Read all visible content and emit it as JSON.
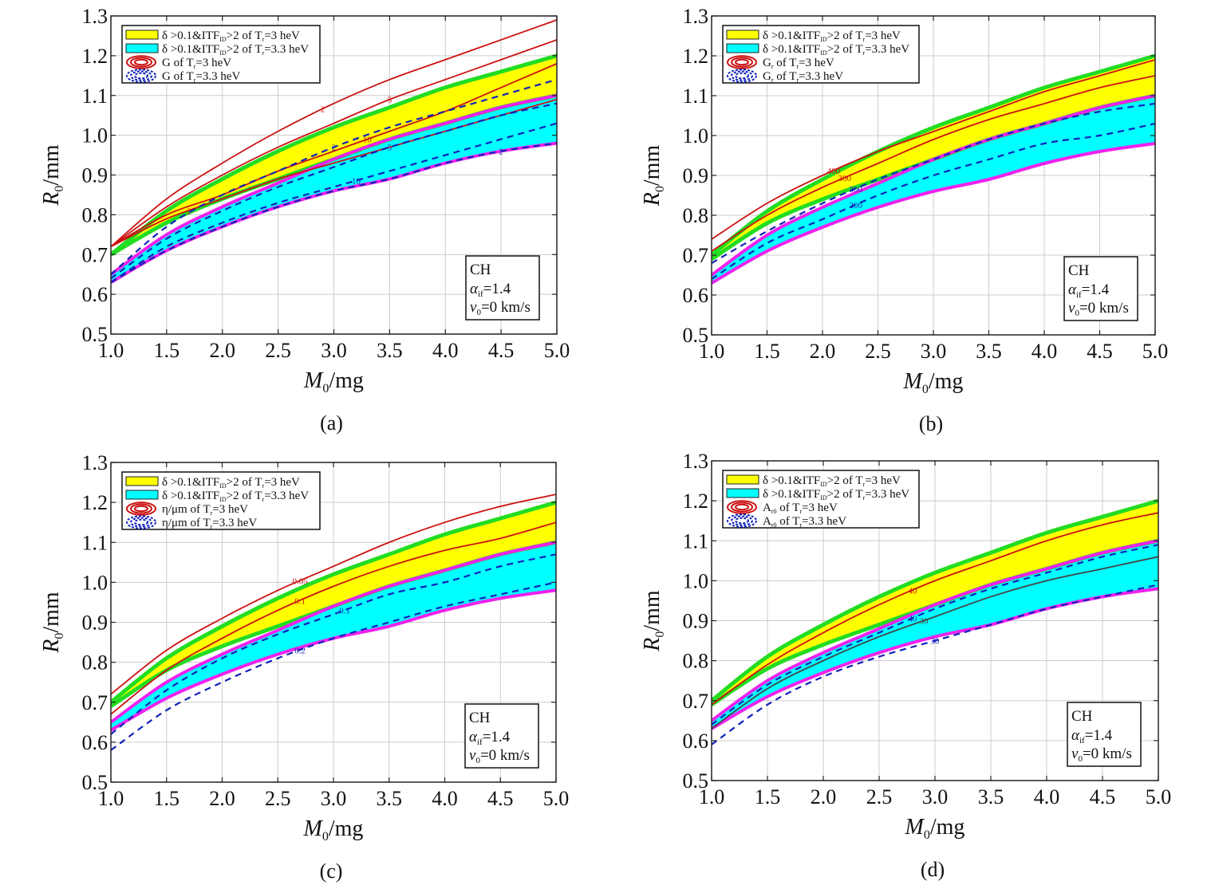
{
  "colors": {
    "yellow_band": "#ffff00",
    "cyan_band": "#00ffff",
    "green_edge": "#22dd22",
    "magenta_edge": "#ee22ee",
    "red_contour": "#cc1111",
    "blue_contour": "#1122bb",
    "dark_contour": "#444444",
    "grid": "#cccccc"
  },
  "chart_data": [
    {
      "panel": "a",
      "type": "area",
      "caption": "(a)",
      "xlabel_main": "M",
      "xlabel_sub": "0",
      "xlabel_unit": "/mg",
      "ylabel_main": "R",
      "ylabel_sub": "0",
      "ylabel_unit": "/mm",
      "xlim": [
        1.0,
        5.0
      ],
      "ylim": [
        0.5,
        1.3
      ],
      "xticks": [
        "1.0",
        "1.5",
        "2.0",
        "2.5",
        "3.0",
        "3.5",
        "4.0",
        "4.5",
        "5.0"
      ],
      "yticks": [
        "0.5",
        "0.6",
        "0.7",
        "0.8",
        "0.9",
        "1.0",
        "1.1",
        "1.2",
        "1.3"
      ],
      "grid": true,
      "legend_position": "top-left",
      "legend": [
        {
          "kind": "yellow",
          "pre": "δ >0.1&ITF",
          "sub1": "ID",
          "mid": ">2 of T",
          "sub2": "r",
          "post": "=3 heV"
        },
        {
          "kind": "cyan",
          "pre": "δ >0.1&ITF",
          "sub1": "ID",
          "mid": ">2 of T",
          "sub2": "r",
          "post": "=3.3 heV"
        },
        {
          "kind": "red",
          "pre": "G of T",
          "sub1": "",
          "mid": "",
          "sub2": "r",
          "post": "=3 heV"
        },
        {
          "kind": "blue",
          "pre": "G of T",
          "sub1": "",
          "mid": "",
          "sub2": "r",
          "post": "=3.3 heV"
        }
      ],
      "info": {
        "material": "CH",
        "alpha_pre": "α",
        "alpha_sub": "if",
        "alpha_post": "=1.4",
        "v_pre": "v",
        "v_sub": "0",
        "v_post": "=0 km/s"
      },
      "x": [
        1.0,
        1.5,
        2.0,
        2.5,
        3.0,
        3.5,
        4.0,
        4.5,
        5.0
      ],
      "bands": {
        "yellow_upper": [
          0.7,
          0.81,
          0.89,
          0.96,
          1.02,
          1.07,
          1.12,
          1.16,
          1.2
        ],
        "yellow_lower": [
          0.7,
          0.78,
          0.84,
          0.89,
          0.94,
          0.99,
          1.03,
          1.07,
          1.1
        ],
        "cyan_upper": [
          0.65,
          0.75,
          0.82,
          0.88,
          0.94,
          0.99,
          1.03,
          1.07,
          1.1
        ],
        "cyan_lower": [
          0.63,
          0.71,
          0.77,
          0.82,
          0.86,
          0.89,
          0.93,
          0.96,
          0.98
        ]
      },
      "contours": [
        {
          "set": "red",
          "label": "2",
          "label_at": 2.9,
          "y": [
            0.72,
            0.84,
            0.93,
            1.01,
            1.08,
            1.14,
            1.19,
            1.24,
            1.29
          ]
        },
        {
          "set": "red",
          "label": "5",
          "label_at": 3.5,
          "y": [
            0.72,
            0.82,
            0.9,
            0.97,
            1.03,
            1.09,
            1.14,
            1.19,
            1.24
          ]
        },
        {
          "set": "red",
          "label": "10",
          "label_at": 3.3,
          "y": [
            0.72,
            0.8,
            0.85,
            0.91,
            0.96,
            1.01,
            1.06,
            1.12,
            1.18
          ]
        },
        {
          "set": "red",
          "label": "2",
          "label_at": 1.7,
          "y": [
            0.72,
            0.79,
            0.84,
            0.89,
            0.93,
            0.97,
            1.01,
            1.05,
            1.09
          ]
        },
        {
          "set": "blue",
          "label": "2",
          "label_at": 3.0,
          "y": [
            0.65,
            0.77,
            0.85,
            0.91,
            0.97,
            1.02,
            1.06,
            1.1,
            1.14
          ]
        },
        {
          "set": "blue",
          "label": "5",
          "label_at": 3.5,
          "y": [
            0.64,
            0.74,
            0.81,
            0.87,
            0.92,
            0.97,
            1.01,
            1.05,
            1.08
          ]
        },
        {
          "set": "blue",
          "label": "10",
          "label_at": 3.2,
          "y": [
            0.63,
            0.72,
            0.78,
            0.83,
            0.87,
            0.91,
            0.95,
            0.99,
            1.03
          ]
        },
        {
          "set": "blue",
          "label": "2",
          "label_at": 4.5,
          "y": [
            0.63,
            0.71,
            0.77,
            0.82,
            0.86,
            0.89,
            0.93,
            0.96,
            0.98
          ]
        }
      ]
    },
    {
      "panel": "b",
      "type": "area",
      "caption": "(b)",
      "xlabel_main": "M",
      "xlabel_sub": "0",
      "xlabel_unit": "/mg",
      "ylabel_main": "R",
      "ylabel_sub": "0",
      "ylabel_unit": "/mm",
      "xlim": [
        1.0,
        5.0
      ],
      "ylim": [
        0.5,
        1.3
      ],
      "xticks": [
        "1.0",
        "1.5",
        "2.0",
        "2.5",
        "3.0",
        "3.5",
        "4.0",
        "4.5",
        "5.0"
      ],
      "yticks": [
        "0.5",
        "0.6",
        "0.7",
        "0.8",
        "0.9",
        "1.0",
        "1.1",
        "1.2",
        "1.3"
      ],
      "grid": true,
      "legend_position": "top-left",
      "legend": [
        {
          "kind": "yellow",
          "pre": "δ >0.1&ITF",
          "sub1": "ID",
          "mid": ">2 of T",
          "sub2": "r",
          "post": "=3 heV"
        },
        {
          "kind": "cyan",
          "pre": "δ >0.1&ITF",
          "sub1": "ID",
          "mid": ">2 of T",
          "sub2": "r",
          "post": "=3.3 heV"
        },
        {
          "kind": "red",
          "pre": "G",
          "sub1": "r",
          "mid": " of T",
          "sub2": "r",
          "post": "=3 heV"
        },
        {
          "kind": "blue",
          "pre": "G",
          "sub1": "r",
          "mid": " of T",
          "sub2": "r",
          "post": "=3.3 heV"
        }
      ],
      "info": {
        "material": "CH",
        "alpha_pre": "α",
        "alpha_sub": "if",
        "alpha_post": "=1.4",
        "v_pre": "v",
        "v_sub": "0",
        "v_post": "=0 km/s"
      },
      "x": [
        1.0,
        1.5,
        2.0,
        2.5,
        3.0,
        3.5,
        4.0,
        4.5,
        5.0
      ],
      "bands": {
        "yellow_upper": [
          0.7,
          0.81,
          0.89,
          0.96,
          1.02,
          1.07,
          1.12,
          1.16,
          1.2
        ],
        "yellow_lower": [
          0.69,
          0.78,
          0.84,
          0.89,
          0.94,
          0.99,
          1.03,
          1.07,
          1.1
        ],
        "cyan_upper": [
          0.65,
          0.75,
          0.82,
          0.88,
          0.94,
          0.99,
          1.03,
          1.07,
          1.1
        ],
        "cyan_lower": [
          0.63,
          0.71,
          0.77,
          0.82,
          0.86,
          0.89,
          0.93,
          0.96,
          0.98
        ]
      },
      "contours": [
        {
          "set": "red",
          "label": "400",
          "label_at": 2.1,
          "y": [
            0.74,
            0.83,
            0.9,
            0.96,
            1.01,
            1.06,
            1.11,
            1.15,
            1.19
          ]
        },
        {
          "set": "red",
          "label": "300",
          "label_at": 2.2,
          "y": [
            0.71,
            0.8,
            0.87,
            0.93,
            0.99,
            1.04,
            1.08,
            1.12,
            1.15
          ]
        },
        {
          "set": "blue",
          "label": "300",
          "label_at": 2.3,
          "y": [
            0.68,
            0.76,
            0.83,
            0.89,
            0.94,
            0.99,
            1.03,
            1.06,
            1.08
          ]
        },
        {
          "set": "blue",
          "label": "200",
          "label_at": 2.3,
          "y": [
            0.64,
            0.73,
            0.79,
            0.85,
            0.9,
            0.94,
            0.98,
            1.0,
            1.03
          ]
        }
      ]
    },
    {
      "panel": "c",
      "type": "area",
      "caption": "(c)",
      "xlabel_main": "M",
      "xlabel_sub": "0",
      "xlabel_unit": "/mg",
      "ylabel_main": "R",
      "ylabel_sub": "0",
      "ylabel_unit": "/mm",
      "xlim": [
        1.0,
        5.0
      ],
      "ylim": [
        0.5,
        1.3
      ],
      "xticks": [
        "1.0",
        "1.5",
        "2.0",
        "2.5",
        "3.0",
        "3.5",
        "4.0",
        "4.5",
        "5.0"
      ],
      "yticks": [
        "0.5",
        "0.6",
        "0.7",
        "0.8",
        "0.9",
        "1.0",
        "1.1",
        "1.2",
        "1.3"
      ],
      "grid": true,
      "legend_position": "top-left",
      "legend": [
        {
          "kind": "yellow",
          "pre": "δ >0.1&ITF",
          "sub1": "ID",
          "mid": ">2 of T",
          "sub2": "r",
          "post": "=3 heV"
        },
        {
          "kind": "cyan",
          "pre": "δ >0.1&ITF",
          "sub1": "ID",
          "mid": ">2 of T",
          "sub2": "r",
          "post": "=3.3 heV"
        },
        {
          "kind": "red",
          "pre": "η/μm of T",
          "sub1": "",
          "mid": "",
          "sub2": "r",
          "post": "=3 heV"
        },
        {
          "kind": "blue",
          "pre": "η/μm of T",
          "sub1": "",
          "mid": "",
          "sub2": "r",
          "post": "=3.3 heV"
        }
      ],
      "info": {
        "material": "CH",
        "alpha_pre": "α",
        "alpha_sub": "if",
        "alpha_post": "=1.4",
        "v_pre": "v",
        "v_sub": "0",
        "v_post": "=0 km/s"
      },
      "x": [
        1.0,
        1.5,
        2.0,
        2.5,
        3.0,
        3.5,
        4.0,
        4.5,
        5.0
      ],
      "bands": {
        "yellow_upper": [
          0.7,
          0.81,
          0.89,
          0.96,
          1.02,
          1.07,
          1.12,
          1.16,
          1.2
        ],
        "yellow_lower": [
          0.69,
          0.78,
          0.84,
          0.89,
          0.94,
          0.99,
          1.03,
          1.07,
          1.1
        ],
        "cyan_upper": [
          0.65,
          0.75,
          0.82,
          0.88,
          0.94,
          0.99,
          1.03,
          1.07,
          1.1
        ],
        "cyan_lower": [
          0.63,
          0.71,
          0.77,
          0.82,
          0.86,
          0.89,
          0.93,
          0.96,
          0.98
        ]
      },
      "contours": [
        {
          "set": "red",
          "label": "0.05",
          "label_at": 2.7,
          "y": [
            0.72,
            0.83,
            0.91,
            0.98,
            1.04,
            1.1,
            1.15,
            1.19,
            1.22
          ]
        },
        {
          "set": "red",
          "label": "0.1",
          "label_at": 2.7,
          "y": [
            0.67,
            0.78,
            0.86,
            0.93,
            0.99,
            1.04,
            1.08,
            1.11,
            1.15
          ]
        },
        {
          "set": "blue",
          "label": "0.1",
          "label_at": 3.1,
          "y": [
            0.62,
            0.73,
            0.81,
            0.87,
            0.92,
            0.97,
            1.0,
            1.04,
            1.07
          ]
        },
        {
          "set": "blue",
          "label": "0.2",
          "label_at": 2.7,
          "y": [
            0.58,
            0.68,
            0.75,
            0.81,
            0.86,
            0.9,
            0.94,
            0.97,
            1.0
          ]
        }
      ]
    },
    {
      "panel": "d",
      "type": "area",
      "caption": "(d)",
      "xlabel_main": "M",
      "xlabel_sub": "0",
      "xlabel_unit": "/mg",
      "ylabel_main": "R",
      "ylabel_sub": "0",
      "ylabel_unit": "/mm",
      "xlim": [
        1.0,
        5.0
      ],
      "ylim": [
        0.5,
        1.3
      ],
      "xticks": [
        "1.0",
        "1.5",
        "2.0",
        "2.5",
        "3.0",
        "3.5",
        "4.0",
        "4.5",
        "5.0"
      ],
      "yticks": [
        "0.5",
        "0.6",
        "0.7",
        "0.8",
        "0.9",
        "1.0",
        "1.1",
        "1.2",
        "1.3"
      ],
      "grid": true,
      "legend_position": "top-left",
      "legend": [
        {
          "kind": "yellow",
          "pre": "δ >0.1&ITF",
          "sub1": "ID",
          "mid": ">2 of T",
          "sub2": "r",
          "post": "=3 heV"
        },
        {
          "kind": "cyan",
          "pre": "δ >0.1&ITF",
          "sub1": "ID",
          "mid": ">2 of T",
          "sub2": "r",
          "post": "=3.3 heV"
        },
        {
          "kind": "red",
          "pre": "A",
          "sub1": "r0",
          "mid": " of T",
          "sub2": "r",
          "post": "=3 heV"
        },
        {
          "kind": "blue",
          "pre": "A",
          "sub1": "r0",
          "mid": " of T",
          "sub2": "r",
          "post": "=3.3 heV"
        }
      ],
      "info": {
        "material": "CH",
        "alpha_pre": "α",
        "alpha_sub": "if",
        "alpha_post": "=1.4",
        "v_pre": "v",
        "v_sub": "0",
        "v_post": "=0 km/s"
      },
      "x": [
        1.0,
        1.5,
        2.0,
        2.5,
        3.0,
        3.5,
        4.0,
        4.5,
        5.0
      ],
      "bands": {
        "yellow_upper": [
          0.7,
          0.81,
          0.89,
          0.96,
          1.02,
          1.07,
          1.12,
          1.16,
          1.2
        ],
        "yellow_lower": [
          0.69,
          0.78,
          0.84,
          0.89,
          0.94,
          0.99,
          1.03,
          1.07,
          1.1
        ],
        "cyan_upper": [
          0.65,
          0.75,
          0.82,
          0.88,
          0.94,
          0.99,
          1.03,
          1.07,
          1.1
        ],
        "cyan_lower": [
          0.63,
          0.71,
          0.77,
          0.82,
          0.86,
          0.89,
          0.93,
          0.96,
          0.98
        ]
      },
      "contours": [
        {
          "set": "red",
          "label": "40",
          "label_at": 2.8,
          "y": [
            0.69,
            0.79,
            0.87,
            0.94,
            1.0,
            1.05,
            1.1,
            1.14,
            1.17
          ]
        },
        {
          "set": "dark",
          "label": "30",
          "label_at": 2.9,
          "y": [
            0.63,
            0.73,
            0.8,
            0.86,
            0.91,
            0.96,
            1.0,
            1.03,
            1.06
          ]
        },
        {
          "set": "blue",
          "label": "40",
          "label_at": 2.8,
          "y": [
            0.64,
            0.74,
            0.81,
            0.87,
            0.93,
            0.98,
            1.02,
            1.06,
            1.09
          ]
        },
        {
          "set": "blue",
          "label": "30",
          "label_at": 3.0,
          "y": [
            0.59,
            0.69,
            0.76,
            0.81,
            0.85,
            0.89,
            0.93,
            0.96,
            0.99
          ]
        }
      ]
    }
  ]
}
